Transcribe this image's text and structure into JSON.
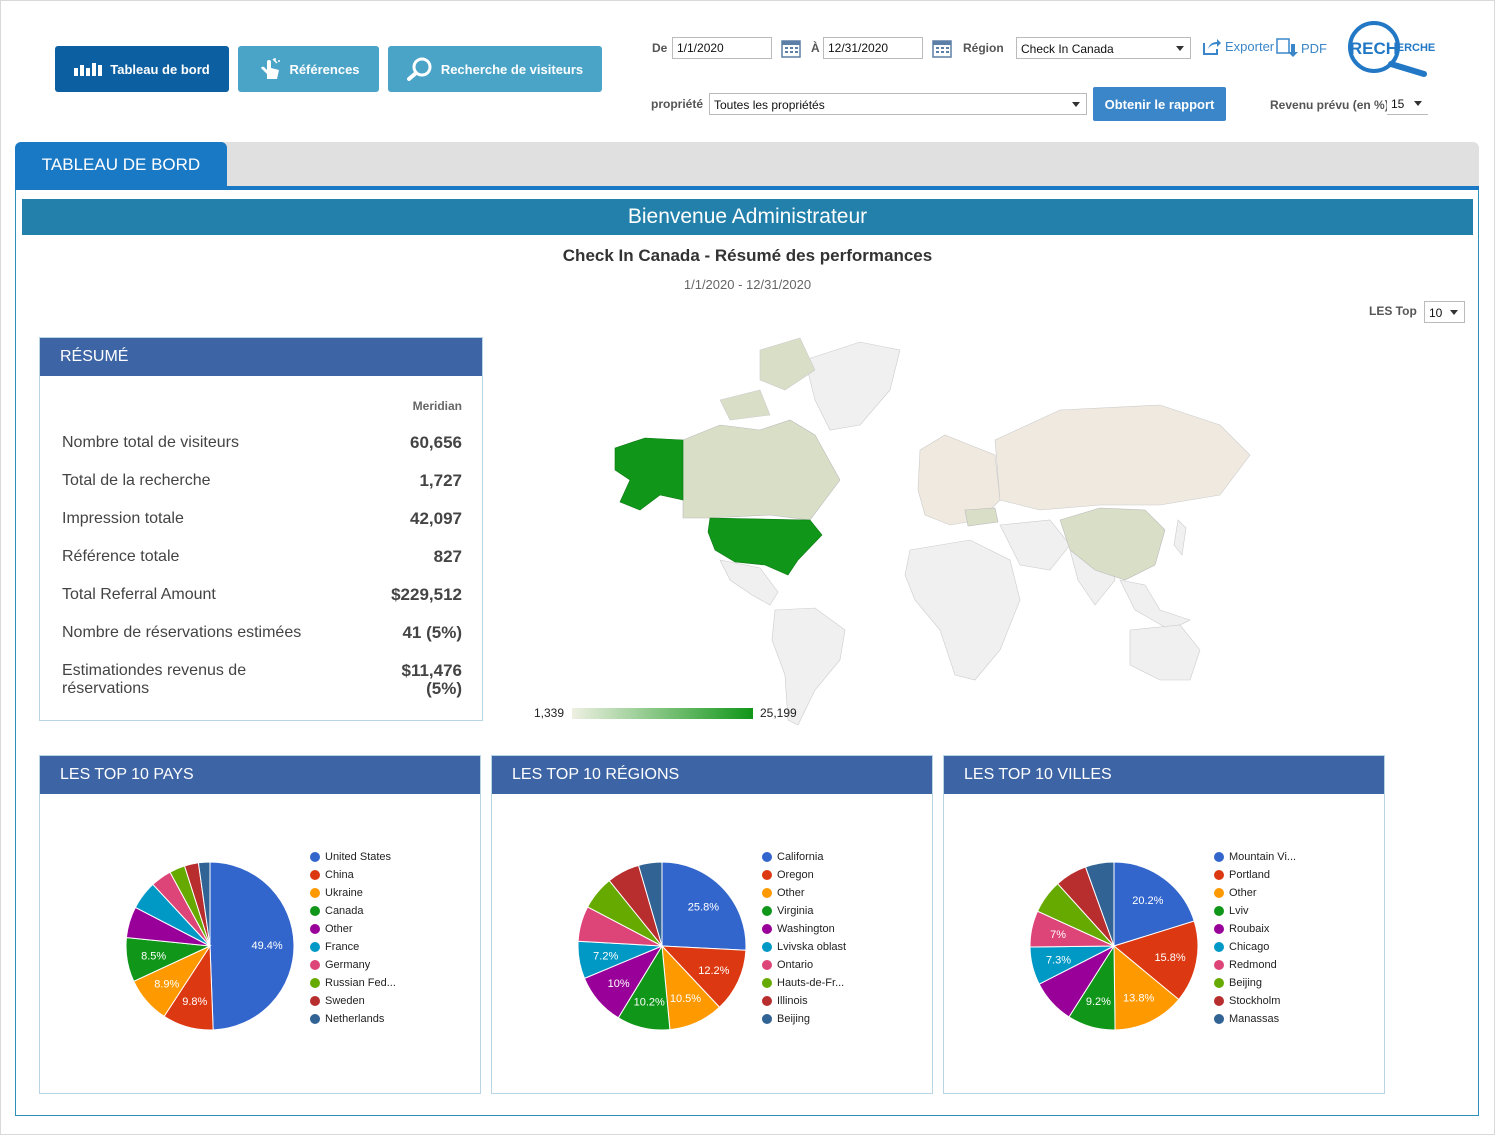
{
  "nav": {
    "dashboard": "Tableau de bord",
    "references": "Références",
    "visitor_search": "Recherche de visiteurs"
  },
  "filters": {
    "from_label": "De",
    "from_value": "1/1/2020",
    "to_label": "À",
    "to_value": "12/31/2020",
    "region_label": "Région",
    "region_value": "Check In Canada",
    "property_label": "propriété",
    "property_value": "Toutes les propriétés",
    "revenue_label": "Revenu prévu (en %)",
    "revenue_value": "15",
    "export_label": "Exporter",
    "pdf_label": "PDF",
    "get_report": "Obtenir le rapport",
    "logo_text": "RECHERCHE"
  },
  "tabs": {
    "active": "TABLEAU DE BORD"
  },
  "welcome": "Bienvenue Administrateur",
  "report": {
    "title": "Check In Canada - Résumé des performances",
    "date_range": "1/1/2020 - 12/31/2020",
    "top_label": "LES Top",
    "top_value": "10"
  },
  "summary": {
    "title": "RÉSUMÉ",
    "column": "Meridian",
    "rows": [
      {
        "label": "Nombre total de visiteurs",
        "value": "60,656"
      },
      {
        "label": "Total de la recherche",
        "value": "1,727"
      },
      {
        "label": "Impression totale",
        "value": "42,097"
      },
      {
        "label": "Référence totale",
        "value": "827"
      },
      {
        "label": "Total Referral Amount",
        "value": "$229,512"
      },
      {
        "label": "Nombre de réservations estimées",
        "value": "41 (5%)"
      },
      {
        "label": "Estimationdes revenus de réservations",
        "value": "$11,476 (5%)"
      }
    ]
  },
  "map": {
    "min_label": "1,339",
    "max_label": "25,199",
    "colors": {
      "low": "#e8ecd8",
      "high": "#109618",
      "neutral": "#f0f0f0"
    }
  },
  "chart_data": [
    {
      "type": "pie",
      "title": "LES TOP 10 PAYS",
      "categories": [
        "United States",
        "China",
        "Ukraine",
        "Canada",
        "Other",
        "France",
        "Germany",
        "Russian Fed...",
        "Sweden",
        "Netherlands"
      ],
      "values": [
        49.4,
        9.8,
        8.9,
        8.5,
        6.0,
        5.5,
        4.0,
        3.0,
        2.7,
        2.2
      ],
      "labels": [
        "49.4%",
        "9.8%",
        "8.9%",
        "8.5%",
        "",
        "",
        "",
        "",
        "",
        ""
      ],
      "colors": [
        "#3366cc",
        "#dc3912",
        "#ff9900",
        "#109618",
        "#990099",
        "#0099c6",
        "#dd4477",
        "#66aa00",
        "#b82e2e",
        "#316395"
      ]
    },
    {
      "type": "pie",
      "title": "LES TOP 10 RÉGIONS",
      "categories": [
        "California",
        "Oregon",
        "Other",
        "Virginia",
        "Washington",
        "Lvivska oblast",
        "Ontario",
        "Hauts-de-Fr...",
        "Illinois",
        "Beijing"
      ],
      "values": [
        25.8,
        12.2,
        10.5,
        10.2,
        10.0,
        7.2,
        6.8,
        6.5,
        6.3,
        4.5
      ],
      "labels": [
        "25.8%",
        "12.2%",
        "10.5%",
        "10.2%",
        "10%",
        "7.2%",
        "",
        "",
        "",
        ""
      ],
      "colors": [
        "#3366cc",
        "#dc3912",
        "#ff9900",
        "#109618",
        "#990099",
        "#0099c6",
        "#dd4477",
        "#66aa00",
        "#b82e2e",
        "#316395"
      ]
    },
    {
      "type": "pie",
      "title": "LES TOP 10 VILLES",
      "categories": [
        "Mountain Vi...",
        "Portland",
        "Other",
        "Lviv",
        "Roubaix",
        "Chicago",
        "Redmond",
        "Beijing",
        "Stockholm",
        "Manassas"
      ],
      "values": [
        20.2,
        15.8,
        13.8,
        9.2,
        8.5,
        7.3,
        7.0,
        6.5,
        6.2,
        5.5
      ],
      "labels": [
        "20.2%",
        "15.8%",
        "13.8%",
        "9.2%",
        "",
        "7.3%",
        "7%",
        "",
        "",
        ""
      ],
      "colors": [
        "#3366cc",
        "#dc3912",
        "#ff9900",
        "#109618",
        "#990099",
        "#0099c6",
        "#dd4477",
        "#66aa00",
        "#b82e2e",
        "#316395"
      ]
    }
  ]
}
